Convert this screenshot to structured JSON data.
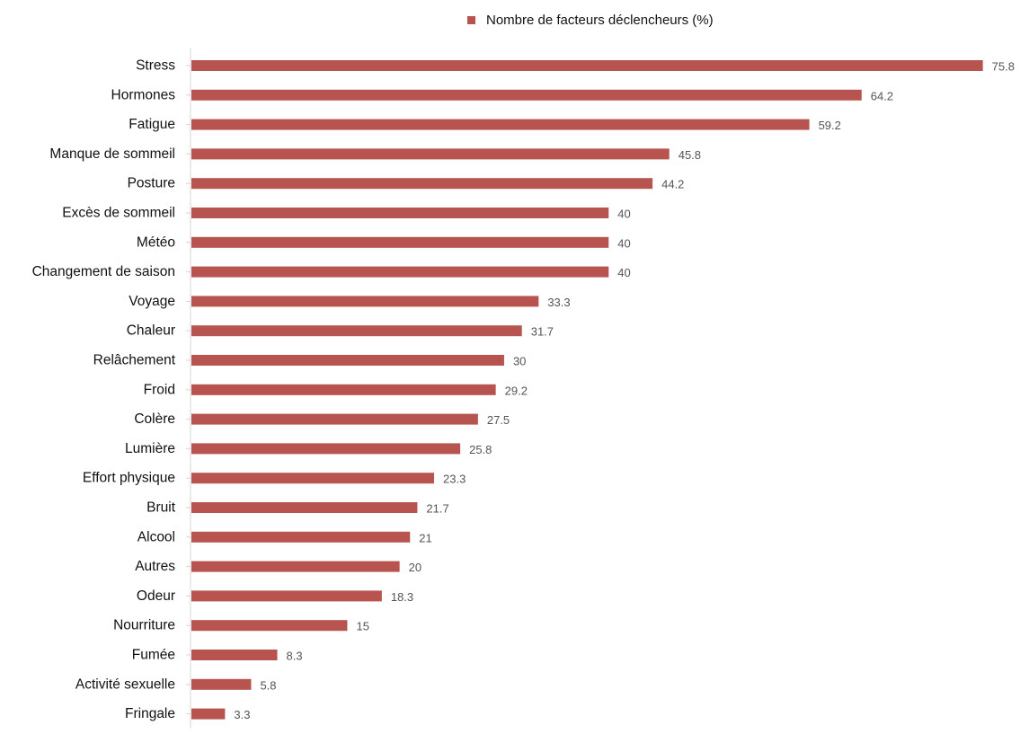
{
  "chart_data": {
    "type": "bar",
    "orientation": "horizontal",
    "legend_position": "top",
    "grid": false,
    "xlim": [
      0,
      76
    ],
    "categories": [
      "Stress",
      "Hormones",
      "Fatigue",
      "Manque de sommeil",
      "Posture",
      "Excès de sommeil",
      "Météo",
      "Changement de saison",
      "Voyage",
      "Chaleur",
      "Relâchement",
      "Froid",
      "Colère",
      "Lumière",
      "Effort physique",
      "Bruit",
      "Alcool",
      "Autres",
      "Odeur",
      "Nourriture",
      "Fumée",
      "Activité sexuelle",
      "Fringale"
    ],
    "series": [
      {
        "name": "Nombre de facteurs déclencheurs (%)",
        "color": "#b85450",
        "values": [
          75.8,
          64.2,
          59.2,
          45.8,
          44.2,
          40,
          40,
          40,
          33.3,
          31.7,
          30,
          29.2,
          27.5,
          25.8,
          23.3,
          21.7,
          21,
          20,
          18.3,
          15,
          8.3,
          5.8,
          3.3
        ],
        "value_labels": [
          "75.8",
          "64.2",
          "59.2",
          "45.8",
          "44.2",
          "40",
          "40",
          "40",
          "33.3",
          "31.7",
          "30",
          "29.2",
          "27.5",
          "25.8",
          "23.3",
          "21.7",
          "21",
          "20",
          "18.3",
          "15",
          "8.3",
          "5.8",
          "3.3"
        ]
      }
    ],
    "axis_color": "#d4d4d4"
  }
}
